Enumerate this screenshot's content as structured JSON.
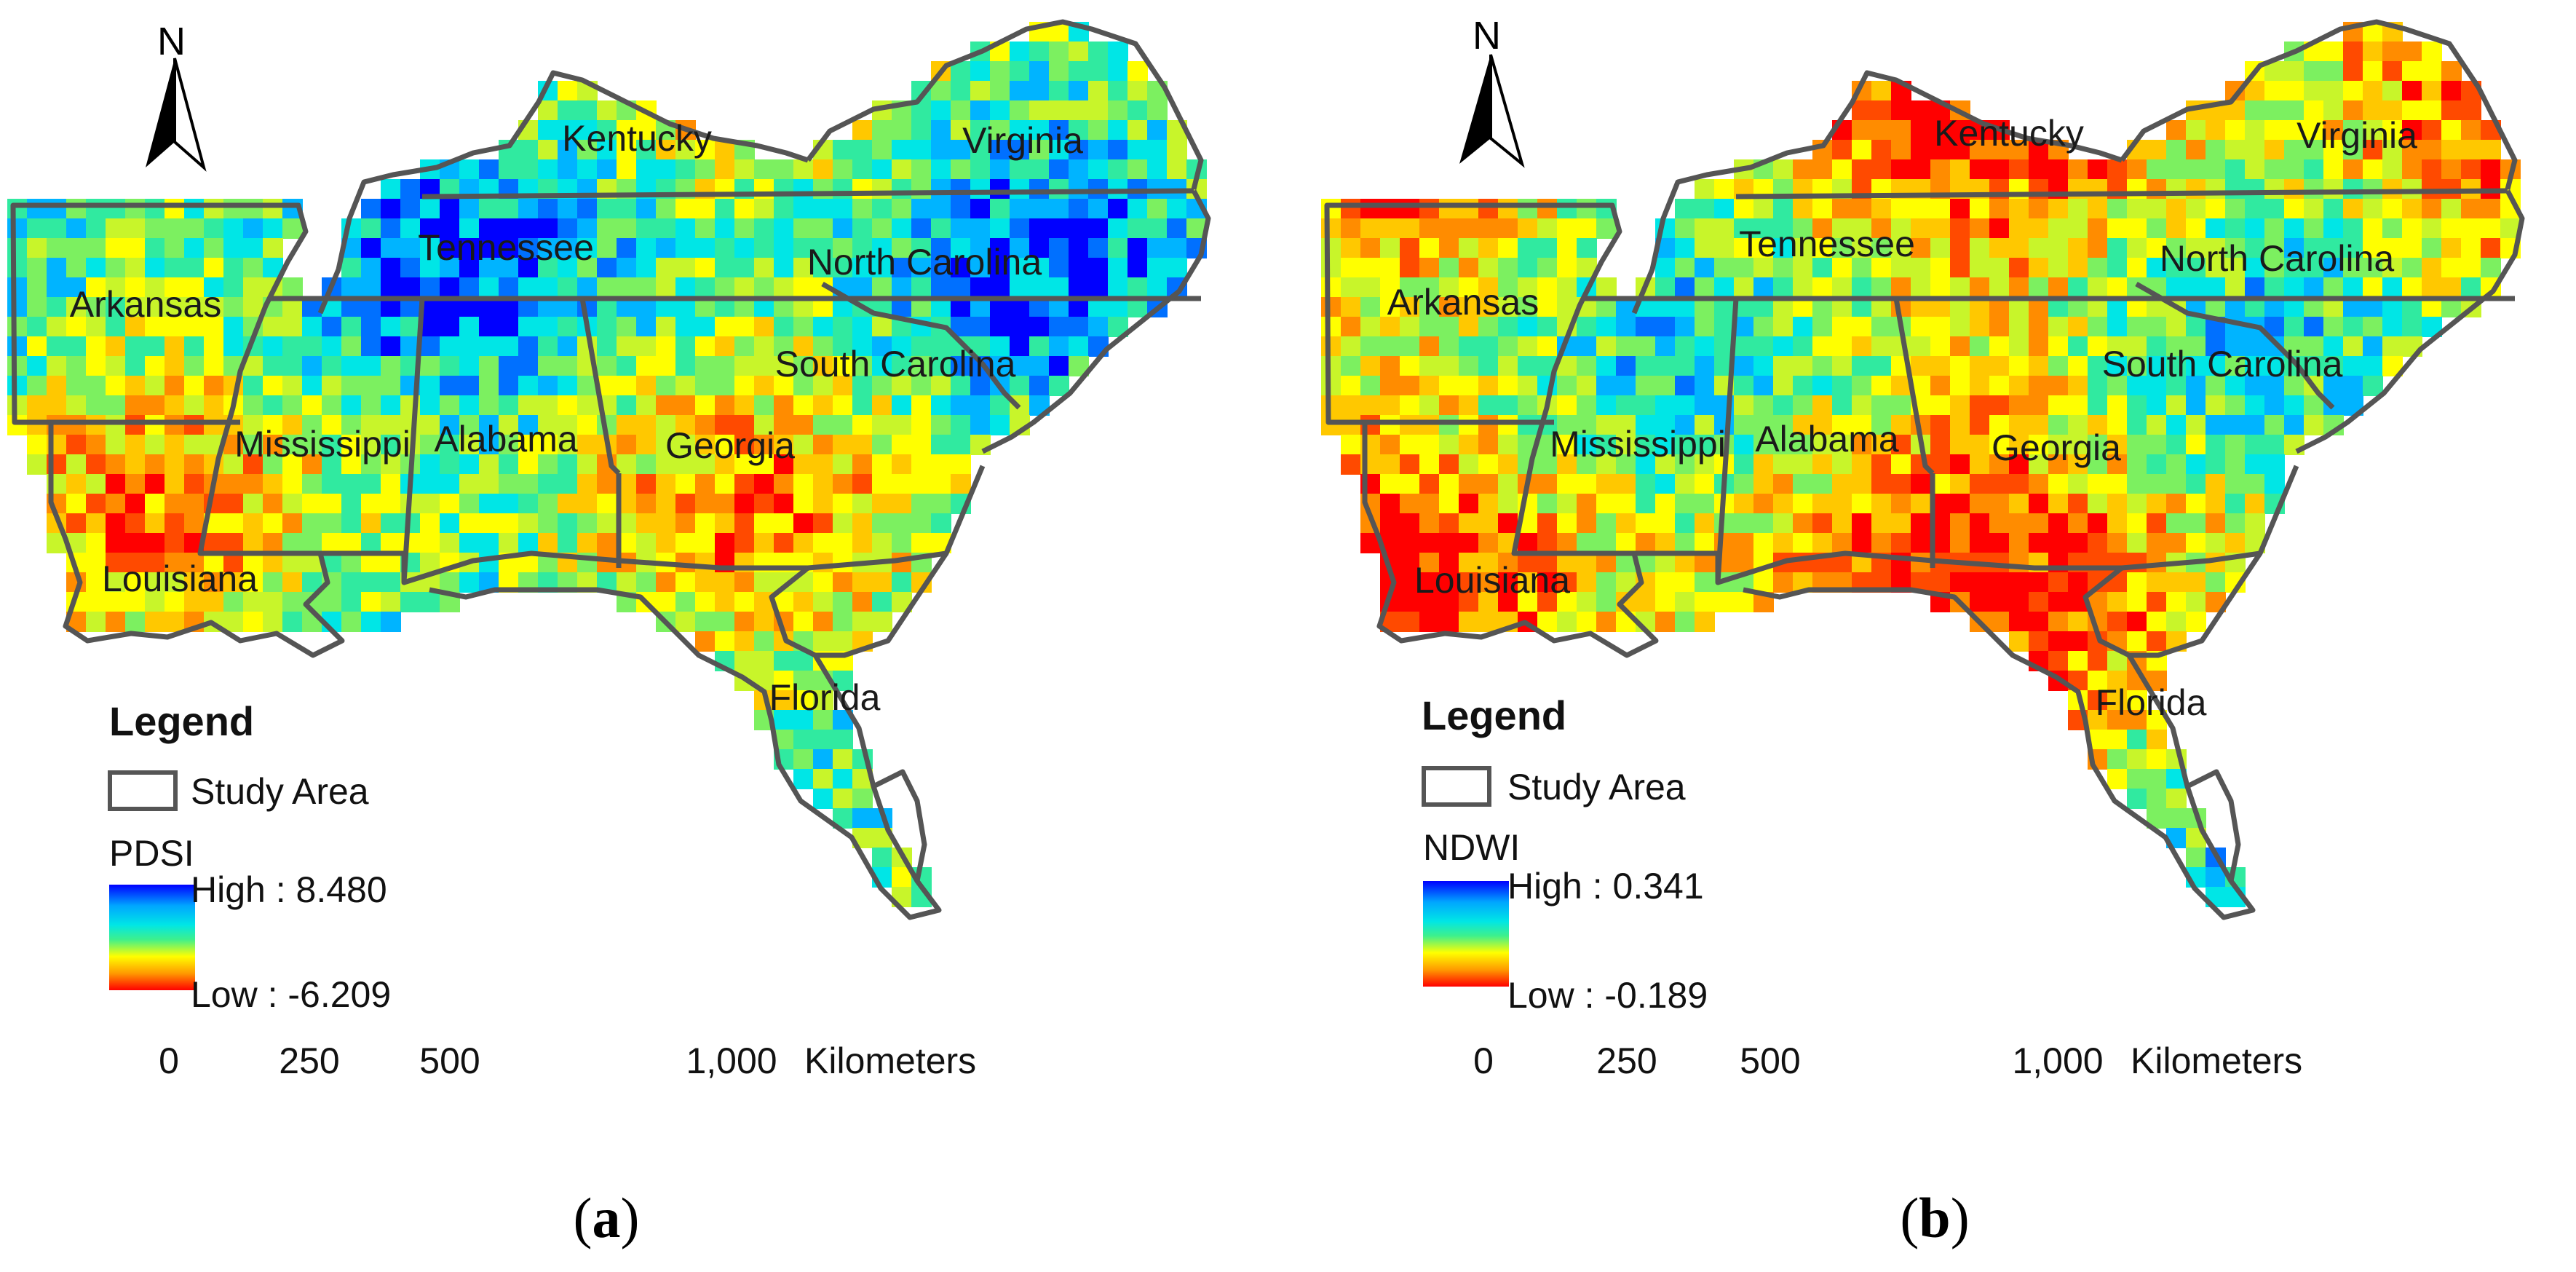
{
  "panels": [
    {
      "id": "a",
      "caption_open": "(",
      "caption_letter": "a",
      "caption_close": ")",
      "north_label": "N",
      "legend": {
        "title": "Legend",
        "study_area_label": "Study Area",
        "variable": "PDSI",
        "high_label": "High : 8.480",
        "low_label": "Low : -6.209"
      },
      "scale": {
        "ticks": [
          "0",
          "250",
          "500",
          "1,000"
        ],
        "unit": "Kilometers"
      },
      "states": [
        "Kentucky",
        "Virginia",
        "Tennessee",
        "North Carolina",
        "Arkansas",
        "South Carolina",
        "Mississippi",
        "Alabama",
        "Georgia",
        "Louisiana",
        "Florida"
      ]
    },
    {
      "id": "b",
      "caption_open": "(",
      "caption_letter": "b",
      "caption_close": ")",
      "north_label": "N",
      "legend": {
        "title": "Legend",
        "study_area_label": "Study Area",
        "variable": "NDWI",
        "high_label": "High : 0.341",
        "low_label": "Low : -0.189"
      },
      "scale": {
        "ticks": [
          "0",
          "250",
          "500",
          "1,000"
        ],
        "unit": "Kilometers"
      },
      "states": [
        "Kentucky",
        "Virginia",
        "Tennessee",
        "North Carolina",
        "Arkansas",
        "South Carolina",
        "Mississippi",
        "Alabama",
        "Georgia",
        "Louisiana",
        "Florida"
      ]
    }
  ],
  "colors": {
    "boundary": "#555555",
    "ramp_high": "#0000ff",
    "ramp_mid": "#ffff00",
    "ramp_low": "#ff0000"
  }
}
